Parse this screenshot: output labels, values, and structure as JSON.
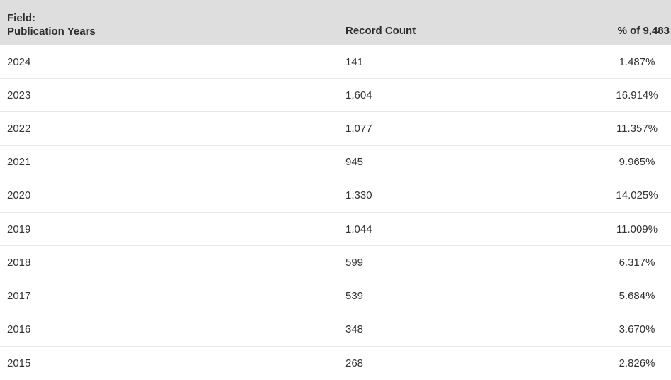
{
  "table": {
    "field_label": "Field:",
    "field_value": "Publication Years",
    "columns": {
      "record_count": "Record Count",
      "percent": "% of 9,483"
    },
    "rows": [
      {
        "year": "2024",
        "count": "141",
        "percent": "1.487%"
      },
      {
        "year": "2023",
        "count": "1,604",
        "percent": "16.914%"
      },
      {
        "year": "2022",
        "count": "1,077",
        "percent": "11.357%"
      },
      {
        "year": "2021",
        "count": "945",
        "percent": "9.965%"
      },
      {
        "year": "2020",
        "count": "1,330",
        "percent": "14.025%"
      },
      {
        "year": "2019",
        "count": "1,044",
        "percent": "11.009%"
      },
      {
        "year": "2018",
        "count": "599",
        "percent": "6.317%"
      },
      {
        "year": "2017",
        "count": "539",
        "percent": "5.684%"
      },
      {
        "year": "2016",
        "count": "348",
        "percent": "3.670%"
      },
      {
        "year": "2015",
        "count": "268",
        "percent": "2.826%"
      }
    ]
  },
  "colors": {
    "header_bg": "#dedede",
    "header_border": "#b9b9b9",
    "row_divider": "#e6e6e6",
    "header_text": "#2e2e2e",
    "row_text": "#333333"
  }
}
